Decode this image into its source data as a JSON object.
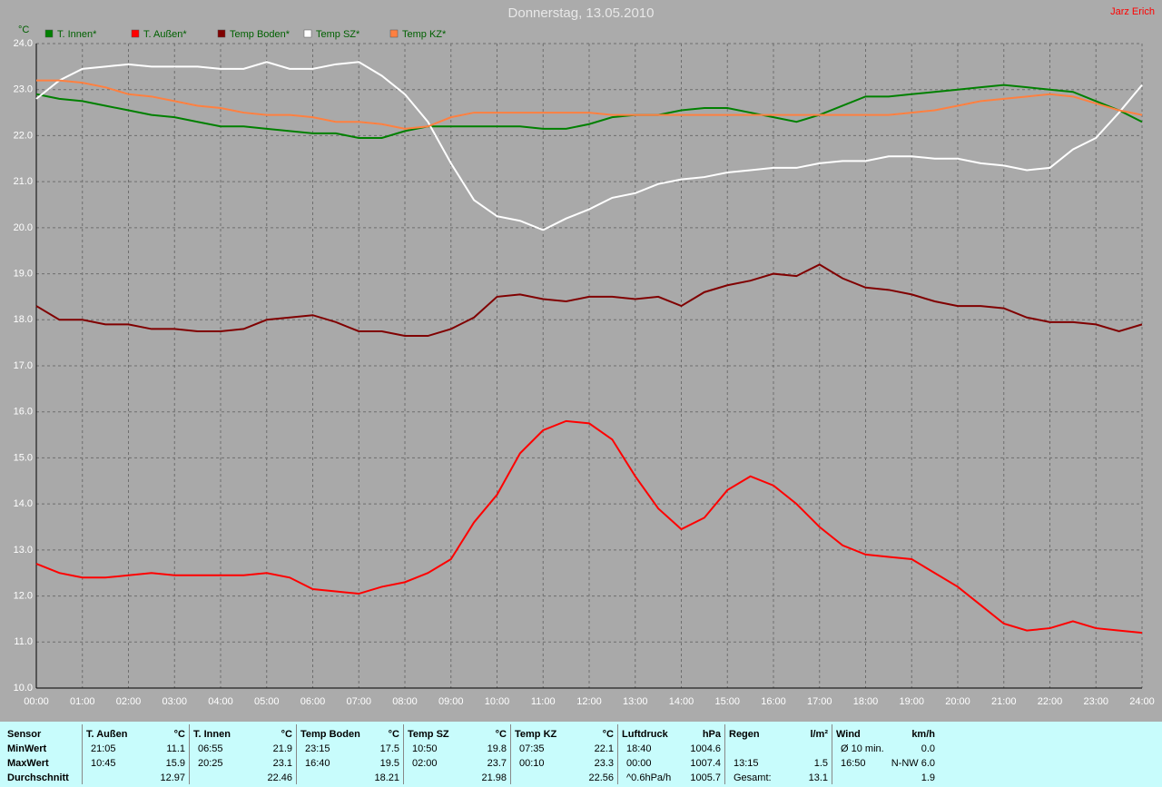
{
  "chart_data": {
    "type": "line",
    "title": "Donnerstag, 13.05.2010",
    "author": "Jarz Erich",
    "y_label": "°C",
    "x": [
      0,
      0.5,
      1,
      1.5,
      2,
      2.5,
      3,
      3.5,
      4,
      4.5,
      5,
      5.5,
      6,
      6.5,
      7,
      7.5,
      8,
      8.5,
      9,
      9.5,
      10,
      10.5,
      11,
      11.5,
      12,
      12.5,
      13,
      13.5,
      14,
      14.5,
      15,
      15.5,
      16,
      16.5,
      17,
      17.5,
      18,
      18.5,
      19,
      19.5,
      20,
      20.5,
      21,
      21.5,
      22,
      22.5,
      23,
      23.5,
      24
    ],
    "series": [
      {
        "name": "T. Innen*",
        "color": "#008000",
        "values": [
          22.9,
          22.8,
          22.75,
          22.65,
          22.55,
          22.45,
          22.4,
          22.3,
          22.2,
          22.2,
          22.15,
          22.1,
          22.05,
          22.05,
          21.95,
          21.95,
          22.1,
          22.2,
          22.2,
          22.2,
          22.2,
          22.2,
          22.15,
          22.15,
          22.25,
          22.4,
          22.45,
          22.45,
          22.55,
          22.6,
          22.6,
          22.5,
          22.4,
          22.3,
          22.45,
          22.65,
          22.85,
          22.85,
          22.9,
          22.95,
          23.0,
          23.05,
          23.1,
          23.05,
          23.0,
          22.95,
          22.75,
          22.55,
          22.3
        ]
      },
      {
        "name": "T. Außen*",
        "color": "#ff0000",
        "values": [
          12.7,
          12.5,
          12.4,
          12.4,
          12.45,
          12.5,
          12.45,
          12.45,
          12.45,
          12.45,
          12.5,
          12.4,
          12.15,
          12.1,
          12.05,
          12.2,
          12.3,
          12.5,
          12.8,
          13.6,
          14.2,
          15.1,
          15.6,
          15.8,
          15.75,
          15.4,
          14.6,
          13.9,
          13.45,
          13.7,
          14.3,
          14.6,
          14.4,
          14.0,
          13.5,
          13.1,
          12.9,
          12.85,
          12.8,
          12.5,
          12.2,
          11.8,
          11.4,
          11.25,
          11.3,
          11.45,
          11.3,
          11.25,
          11.2
        ]
      },
      {
        "name": "Temp Boden*",
        "color": "#800000",
        "values": [
          18.3,
          18.0,
          18.0,
          17.9,
          17.9,
          17.8,
          17.8,
          17.75,
          17.75,
          17.8,
          18.0,
          18.05,
          18.1,
          17.95,
          17.75,
          17.75,
          17.65,
          17.65,
          17.8,
          18.05,
          18.5,
          18.55,
          18.45,
          18.4,
          18.5,
          18.5,
          18.45,
          18.5,
          18.3,
          18.6,
          18.75,
          18.85,
          19.0,
          18.95,
          19.2,
          18.9,
          18.7,
          18.65,
          18.55,
          18.4,
          18.3,
          18.3,
          18.25,
          18.05,
          17.95,
          17.95,
          17.9,
          17.75,
          17.9
        ]
      },
      {
        "name": "Temp SZ*",
        "color": "#ffffff",
        "values": [
          22.8,
          23.2,
          23.45,
          23.5,
          23.55,
          23.5,
          23.5,
          23.5,
          23.45,
          23.45,
          23.6,
          23.45,
          23.45,
          23.55,
          23.6,
          23.3,
          22.9,
          22.3,
          21.4,
          20.6,
          20.25,
          20.15,
          19.95,
          20.2,
          20.4,
          20.65,
          20.75,
          20.95,
          21.05,
          21.1,
          21.2,
          21.25,
          21.3,
          21.3,
          21.4,
          21.45,
          21.45,
          21.55,
          21.55,
          21.5,
          21.5,
          21.4,
          21.35,
          21.25,
          21.3,
          21.7,
          21.95,
          22.5,
          23.1
        ]
      },
      {
        "name": "Temp KZ*",
        "color": "#ff8040",
        "values": [
          23.2,
          23.2,
          23.15,
          23.05,
          22.9,
          22.85,
          22.75,
          22.65,
          22.6,
          22.5,
          22.45,
          22.45,
          22.4,
          22.3,
          22.3,
          22.25,
          22.15,
          22.2,
          22.4,
          22.5,
          22.5,
          22.5,
          22.5,
          22.5,
          22.5,
          22.45,
          22.45,
          22.45,
          22.45,
          22.45,
          22.45,
          22.45,
          22.45,
          22.45,
          22.45,
          22.45,
          22.45,
          22.45,
          22.5,
          22.55,
          22.65,
          22.75,
          22.8,
          22.85,
          22.9,
          22.85,
          22.7,
          22.55,
          22.45
        ]
      }
    ],
    "xlim": [
      0,
      24
    ],
    "xticks": [
      {
        "value": 0,
        "label": "00:00"
      },
      {
        "value": 1,
        "label": "01:00"
      },
      {
        "value": 2,
        "label": "02:00"
      },
      {
        "value": 3,
        "label": "03:00"
      },
      {
        "value": 4,
        "label": "04:00"
      },
      {
        "value": 5,
        "label": "05:00"
      },
      {
        "value": 6,
        "label": "06:00"
      },
      {
        "value": 7,
        "label": "07:00"
      },
      {
        "value": 8,
        "label": "08:00"
      },
      {
        "value": 9,
        "label": "09:00"
      },
      {
        "value": 10,
        "label": "10:00"
      },
      {
        "value": 11,
        "label": "11:00"
      },
      {
        "value": 12,
        "label": "12:00"
      },
      {
        "value": 13,
        "label": "13:00"
      },
      {
        "value": 14,
        "label": "14:00"
      },
      {
        "value": 15,
        "label": "15:00"
      },
      {
        "value": 16,
        "label": "16:00"
      },
      {
        "value": 17,
        "label": "17:00"
      },
      {
        "value": 18,
        "label": "18:00"
      },
      {
        "value": 19,
        "label": "19:00"
      },
      {
        "value": 20,
        "label": "20:00"
      },
      {
        "value": 21,
        "label": "21:00"
      },
      {
        "value": 22,
        "label": "22:00"
      },
      {
        "value": 23,
        "label": "23:00"
      },
      {
        "value": 24,
        "label": "24:00"
      }
    ],
    "ylim": [
      10,
      24
    ],
    "yticks": [
      {
        "value": 10,
        "label": "10.0"
      },
      {
        "value": 11,
        "label": "11.0"
      },
      {
        "value": 12,
        "label": "12.0"
      },
      {
        "value": 13,
        "label": "13.0"
      },
      {
        "value": 14,
        "label": "14.0"
      },
      {
        "value": 15,
        "label": "15.0"
      },
      {
        "value": 16,
        "label": "16.0"
      },
      {
        "value": 17,
        "label": "17.0"
      },
      {
        "value": 18,
        "label": "18.0"
      },
      {
        "value": 19,
        "label": "19.0"
      },
      {
        "value": 20,
        "label": "20.0"
      },
      {
        "value": 21,
        "label": "21.0"
      },
      {
        "value": 22,
        "label": "22.0"
      },
      {
        "value": 23,
        "label": "23.0"
      },
      {
        "value": 24,
        "label": "24.0"
      }
    ],
    "grid": true
  },
  "stats": {
    "row_header": "Sensor",
    "row_labels": [
      "MinWert",
      "MaxWert",
      "Durchschnitt"
    ],
    "columns": [
      {
        "name": "T. Außen",
        "unit": "°C",
        "cells": [
          {
            "time": "21:05",
            "value": "11.1"
          },
          {
            "time": "10:45",
            "value": "15.9"
          },
          {
            "value": "12.97"
          }
        ]
      },
      {
        "name": "T. Innen",
        "unit": "°C",
        "cells": [
          {
            "time": "06:55",
            "value": "21.9"
          },
          {
            "time": "20:25",
            "value": "23.1"
          },
          {
            "value": "22.46"
          }
        ]
      },
      {
        "name": "Temp Boden",
        "unit": "°C",
        "cells": [
          {
            "time": "23:15",
            "value": "17.5"
          },
          {
            "time": "16:40",
            "value": "19.5"
          },
          {
            "value": "18.21"
          }
        ]
      },
      {
        "name": "Temp SZ",
        "unit": "°C",
        "cells": [
          {
            "time": "10:50",
            "value": "19.8"
          },
          {
            "time": "02:00",
            "value": "23.7"
          },
          {
            "value": "21.98"
          }
        ]
      },
      {
        "name": "Temp KZ",
        "unit": "°C",
        "cells": [
          {
            "time": "07:35",
            "value": "22.1"
          },
          {
            "time": "00:10",
            "value": "23.3"
          },
          {
            "value": "22.56"
          }
        ]
      },
      {
        "name": "Luftdruck",
        "unit": "hPa",
        "cells": [
          {
            "time": "18:40",
            "value": "1004.6"
          },
          {
            "time": "00:00",
            "value": "1007.4"
          },
          {
            "time": "^0.6hPa/h",
            "value": "1005.7"
          }
        ]
      },
      {
        "name": "Regen",
        "unit": "l/m²",
        "cells": [
          null,
          {
            "time": "13:15",
            "value": "1.5"
          },
          {
            "time": "Gesamt:",
            "value": "13.1"
          }
        ]
      },
      {
        "name": "Wind",
        "unit": "km/h",
        "cells": [
          {
            "time": "Ø 10 min.",
            "value": "0.0"
          },
          {
            "time": "16:50",
            "value": "N-NW 6.0"
          },
          {
            "value": "1.9"
          }
        ]
      }
    ]
  }
}
